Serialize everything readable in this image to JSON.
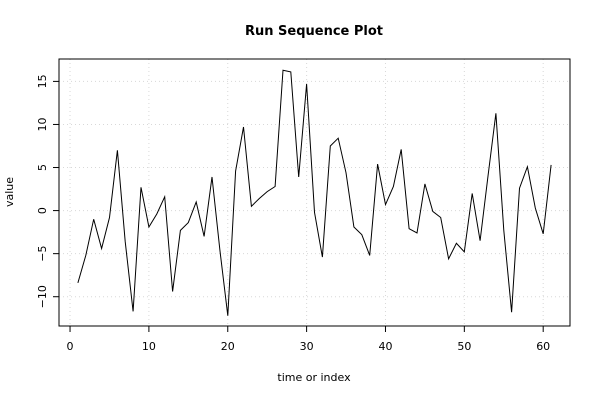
{
  "chart_data": {
    "type": "line",
    "title": "Run Sequence Plot",
    "xlabel": "time or index",
    "ylabel": "value",
    "xlim": [
      -1.4,
      63.4
    ],
    "ylim": [
      -13.4,
      17.6
    ],
    "xticks": [
      0,
      10,
      20,
      30,
      40,
      50,
      60
    ],
    "yticks": [
      -10,
      -5,
      0,
      5,
      10,
      15
    ],
    "grid": true,
    "series": [
      {
        "x": [
          1,
          2,
          3,
          4,
          5,
          6,
          7,
          8,
          9,
          10,
          11,
          12,
          13,
          14,
          15,
          16,
          17,
          18,
          19,
          20,
          21,
          22,
          23,
          24,
          25,
          26,
          27,
          28,
          29,
          30,
          31,
          32,
          33,
          34,
          35,
          36,
          37,
          38,
          39,
          40,
          41,
          42,
          43,
          44,
          45,
          46,
          47,
          48,
          49,
          50,
          51,
          52,
          53,
          54,
          55,
          56,
          57,
          58,
          59,
          60,
          61
        ],
        "values": [
          -8.4,
          -5.2,
          -1.0,
          -4.4,
          -0.8,
          7.0,
          -3.6,
          -11.7,
          2.7,
          -1.9,
          -0.4,
          1.6,
          -9.4,
          -2.3,
          -1.4,
          1.0,
          -3.0,
          3.9,
          -4.6,
          -12.2,
          4.6,
          9.7,
          0.5,
          1.4,
          2.2,
          2.8,
          16.3,
          16.1,
          3.9,
          14.7,
          -0.2,
          -5.4,
          7.5,
          8.4,
          4.4,
          -1.9,
          -2.8,
          -5.2,
          5.4,
          0.7,
          2.8,
          7.1,
          -2.1,
          -2.6,
          3.1,
          -0.1,
          -0.8,
          -5.6,
          -3.8,
          -4.8,
          2.0,
          -3.5,
          4.0,
          11.3,
          -2.3,
          -11.8,
          2.6,
          5.1,
          0.3,
          -2.7,
          5.3
        ]
      }
    ]
  }
}
